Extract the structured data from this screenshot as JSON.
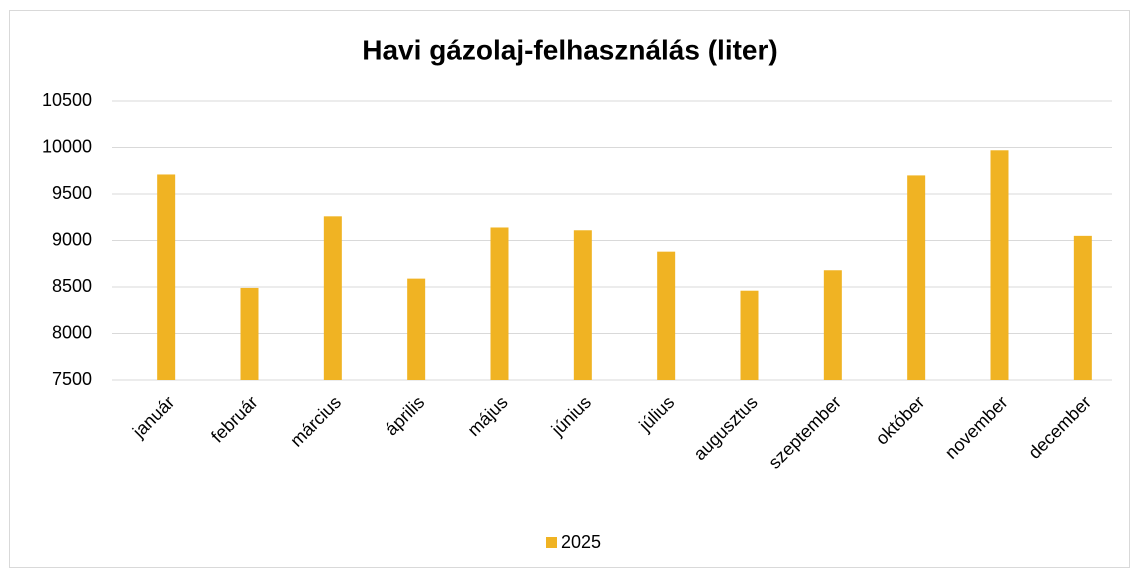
{
  "chart_data": {
    "type": "bar",
    "title": "Havi gázolaj-felhasználás (liter)",
    "categories": [
      "január",
      "február",
      "március",
      "április",
      "május",
      "június",
      "július",
      "augusztus",
      "szeptember",
      "október",
      "november",
      "december"
    ],
    "series": [
      {
        "name": "2025",
        "color": "#f0b323",
        "values": [
          9710,
          8490,
          9260,
          8590,
          9140,
          9110,
          8880,
          8460,
          8680,
          9700,
          9970,
          9050
        ]
      }
    ],
    "ylim": [
      7500,
      10500
    ],
    "yticks": [
      7500,
      8000,
      8500,
      9000,
      9500,
      10000,
      10500
    ],
    "grid": true,
    "legend": "bottom"
  }
}
